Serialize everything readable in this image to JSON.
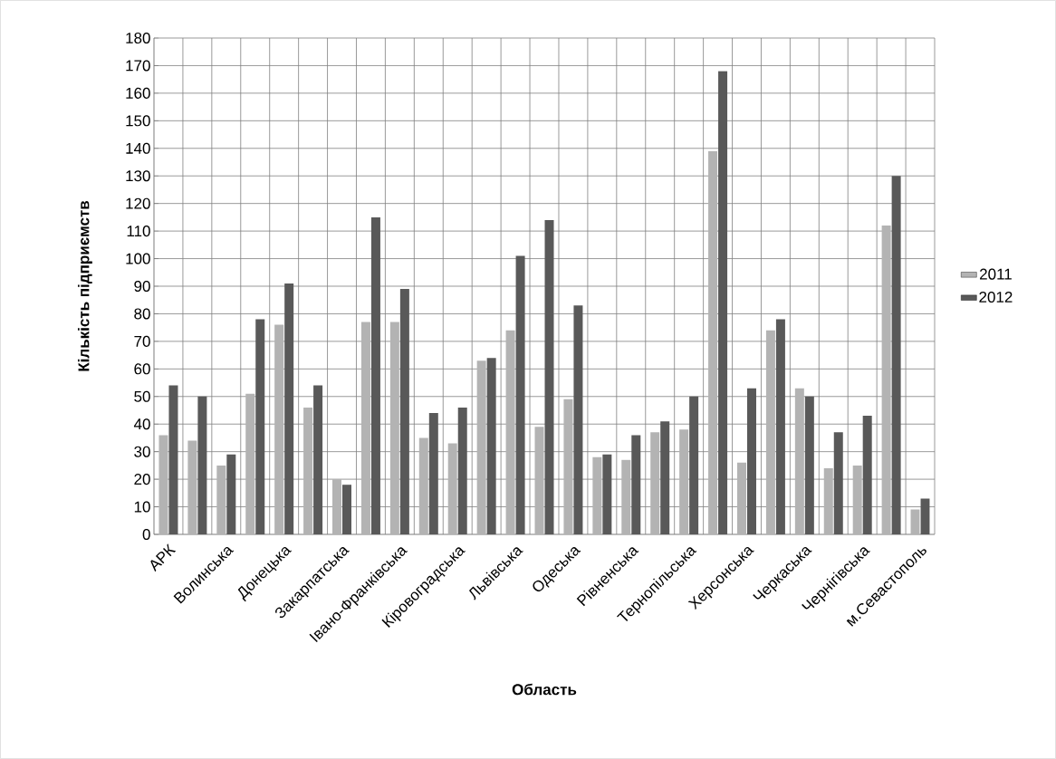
{
  "chart_data": {
    "type": "bar",
    "xlabel": "Область",
    "ylabel": "Кількість підприємств",
    "categories": [
      "АРК",
      null,
      "Волинська",
      null,
      "Донецька",
      null,
      "Закарпатська",
      null,
      "Івано-Франківська",
      null,
      "Кіровоградська",
      null,
      "Львівська",
      null,
      "Одеська",
      null,
      "Рівненська",
      null,
      "Тернопільська",
      null,
      "Херсонська",
      null,
      "Черкаська",
      null,
      "Чернігівська",
      null,
      "м.Севастополь"
    ],
    "series": [
      {
        "name": "2011",
        "color": "#b3b3b3",
        "values": [
          36,
          34,
          25,
          51,
          76,
          46,
          20,
          77,
          77,
          35,
          33,
          63,
          74,
          39,
          49,
          28,
          27,
          37,
          38,
          139,
          26,
          74,
          53,
          24,
          25,
          112,
          9
        ]
      },
      {
        "name": "2012",
        "color": "#595959",
        "values": [
          54,
          50,
          29,
          78,
          91,
          54,
          18,
          115,
          89,
          44,
          46,
          64,
          101,
          114,
          83,
          29,
          36,
          41,
          50,
          168,
          53,
          78,
          50,
          37,
          43,
          130,
          13
        ]
      }
    ],
    "ylim": [
      0,
      180
    ],
    "yticks": [
      0,
      10,
      20,
      30,
      40,
      50,
      60,
      70,
      80,
      90,
      100,
      110,
      120,
      130,
      140,
      150,
      160,
      170,
      180
    ],
    "grid": true,
    "legend": "right"
  }
}
